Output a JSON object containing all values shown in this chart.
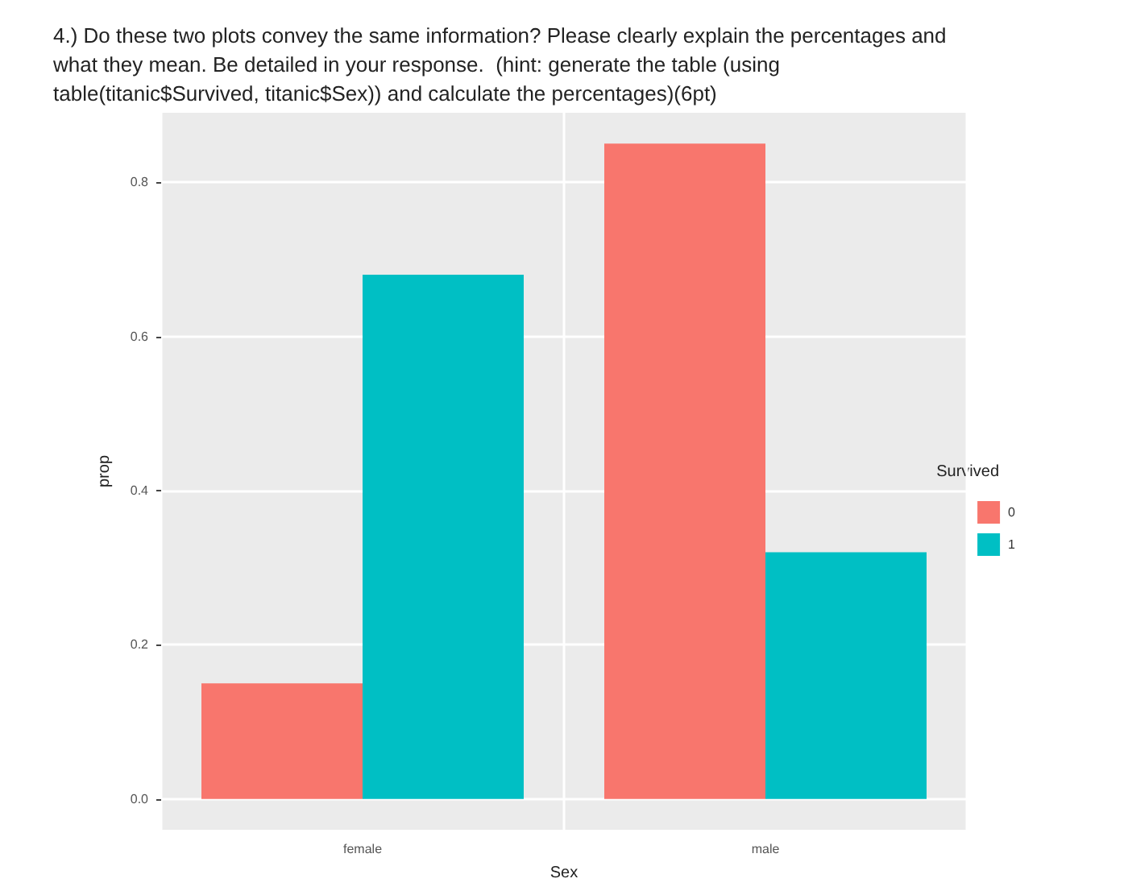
{
  "chart_data": {
    "type": "bar",
    "title": "4.) Do these two plots convey the same information? Please clearly explain the percentages and what they mean. Be detailed in your response.  (hint: generate the table (using table(titanic$Survived, titanic$Sex)) and calculate the percentages)(6pt)",
    "xlabel": "Sex",
    "ylabel": "prop",
    "legend_title": "Survived",
    "categories": [
      "female",
      "male"
    ],
    "series": [
      {
        "name": "0",
        "color": "#f8766d",
        "values": [
          0.15,
          0.85
        ]
      },
      {
        "name": "1",
        "color": "#00bfc4",
        "values": [
          0.68,
          0.32
        ]
      }
    ],
    "ylim": [
      -0.04,
      0.89
    ],
    "yticks": [
      {
        "value": 0,
        "label": "0.0"
      },
      0.2,
      0.4,
      0.6,
      0.8
    ],
    "grid": true,
    "legend": "right"
  }
}
